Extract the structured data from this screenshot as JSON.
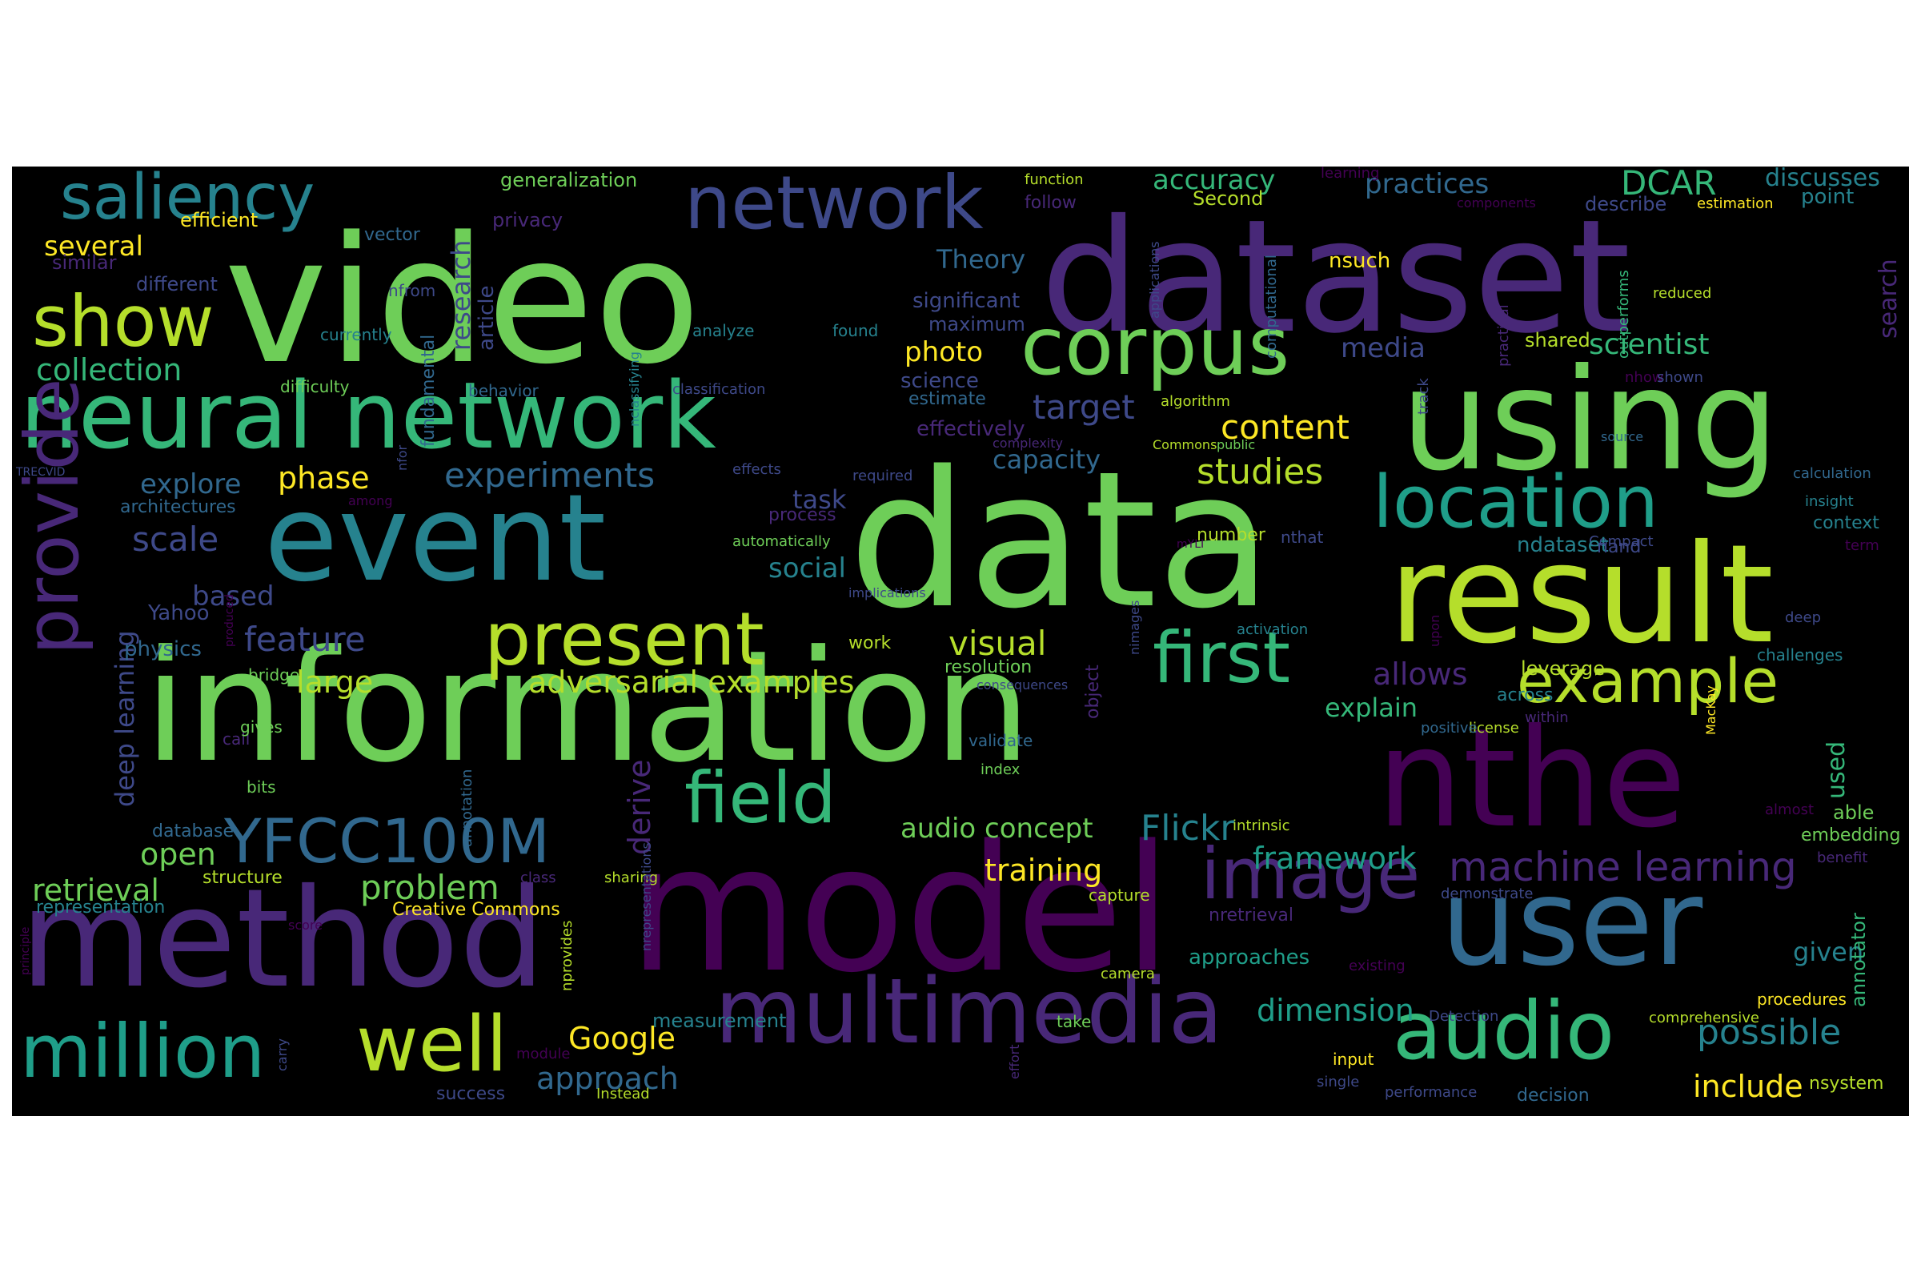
{
  "palette": {
    "background": "#000000",
    "page": "#ffffff",
    "colors": [
      "#440154",
      "#482878",
      "#3e4989",
      "#31688e",
      "#26828e",
      "#1f9e89",
      "#35b779",
      "#6ece58",
      "#b5de2b",
      "#fde725"
    ]
  },
  "words": [
    {
      "text": "video",
      "color": "#6ece58"
    },
    {
      "text": "dataset",
      "color": "#482878"
    },
    {
      "text": "data",
      "color": "#6ece58"
    },
    {
      "text": "information",
      "color": "#6ece58"
    },
    {
      "text": "model",
      "color": "#440154"
    },
    {
      "text": "method",
      "color": "#482878"
    },
    {
      "text": "event",
      "color": "#26828e"
    },
    {
      "text": "using",
      "color": "#6ece58"
    },
    {
      "text": "result",
      "color": "#b5de2b"
    },
    {
      "text": "nthe",
      "color": "#440154"
    },
    {
      "text": "user",
      "color": "#31688e"
    },
    {
      "text": "neural network",
      "color": "#35b779"
    },
    {
      "text": "multimedia",
      "color": "#482878"
    },
    {
      "text": "network",
      "color": "#3e4989"
    },
    {
      "text": "corpus",
      "color": "#6ece58"
    },
    {
      "text": "saliency",
      "color": "#26828e"
    },
    {
      "text": "present",
      "color": "#b5de2b"
    },
    {
      "text": "location",
      "color": "#1f9e89"
    },
    {
      "text": "audio",
      "color": "#35b779"
    },
    {
      "text": "provide",
      "color": "#482878"
    },
    {
      "text": "image",
      "color": "#482878"
    },
    {
      "text": "first",
      "color": "#35b779"
    },
    {
      "text": "million",
      "color": "#1f9e89"
    },
    {
      "text": "well",
      "color": "#b5de2b"
    },
    {
      "text": "show",
      "color": "#b5de2b"
    },
    {
      "text": "example",
      "color": "#b5de2b"
    },
    {
      "text": "field",
      "color": "#35b779"
    },
    {
      "text": "YFCC100M",
      "color": "#31688e"
    },
    {
      "text": "machine learning",
      "color": "#482878"
    },
    {
      "text": "DCAR",
      "color": "#35b779"
    },
    {
      "text": "collection",
      "color": "#35b779"
    },
    {
      "text": "experiments",
      "color": "#31688e"
    },
    {
      "text": "phase",
      "color": "#fde725"
    },
    {
      "text": "studies",
      "color": "#b5de2b"
    },
    {
      "text": "content",
      "color": "#fde725"
    },
    {
      "text": "explore",
      "color": "#31688e"
    },
    {
      "text": "target",
      "color": "#3e4989"
    },
    {
      "text": "scale",
      "color": "#3e4989"
    },
    {
      "text": "feature",
      "color": "#3e4989"
    },
    {
      "text": "visual",
      "color": "#b5de2b"
    },
    {
      "text": "adversarial examples",
      "color": "#b5de2b"
    },
    {
      "text": "large",
      "color": "#b5de2b"
    },
    {
      "text": "problem",
      "color": "#6ece58"
    },
    {
      "text": "retrieval",
      "color": "#6ece58"
    },
    {
      "text": "open",
      "color": "#6ece58"
    },
    {
      "text": "deep learning",
      "color": "#3e4989"
    },
    {
      "text": "derive",
      "color": "#482878"
    },
    {
      "text": "audio concept",
      "color": "#6ece58"
    },
    {
      "text": "Flickr",
      "color": "#26828e"
    },
    {
      "text": "framework",
      "color": "#1f9e89"
    },
    {
      "text": "training",
      "color": "#fde725"
    },
    {
      "text": "Google",
      "color": "#fde725"
    },
    {
      "text": "approach",
      "color": "#31688e"
    },
    {
      "text": "dimension",
      "color": "#1f9e89"
    },
    {
      "text": "possible",
      "color": "#26828e"
    },
    {
      "text": "include",
      "color": "#fde725"
    },
    {
      "text": "several",
      "color": "#fde725"
    },
    {
      "text": "research",
      "color": "#3e4989"
    },
    {
      "text": "accuracy",
      "color": "#35b779"
    },
    {
      "text": "practices",
      "color": "#31688e"
    },
    {
      "text": "discusses",
      "color": "#26828e"
    },
    {
      "text": "scientist",
      "color": "#35b779"
    },
    {
      "text": "media",
      "color": "#3e4989"
    },
    {
      "text": "photo",
      "color": "#fde725"
    },
    {
      "text": "Theory",
      "color": "#31688e"
    },
    {
      "text": "capacity",
      "color": "#31688e"
    },
    {
      "text": "task",
      "color": "#3e4989"
    },
    {
      "text": "social",
      "color": "#26828e"
    },
    {
      "text": "based",
      "color": "#3e4989"
    },
    {
      "text": "allows",
      "color": "#482878"
    },
    {
      "text": "explain",
      "color": "#35b779"
    },
    {
      "text": "given",
      "color": "#26828e"
    },
    {
      "text": "used",
      "color": "#35b779"
    },
    {
      "text": "search",
      "color": "#482878"
    },
    {
      "text": "article",
      "color": "#3e4989"
    },
    {
      "text": "nsuch",
      "color": "#fde725"
    },
    {
      "text": "shared",
      "color": "#b5de2b"
    },
    {
      "text": "point",
      "color": "#26828e"
    },
    {
      "text": "describe",
      "color": "#3e4989"
    },
    {
      "text": "significant",
      "color": "#3e4989"
    },
    {
      "text": "maximum",
      "color": "#3e4989"
    },
    {
      "text": "effectively",
      "color": "#482878"
    },
    {
      "text": "science",
      "color": "#3e4989"
    },
    {
      "text": "estimate",
      "color": "#31688e"
    },
    {
      "text": "approaches",
      "color": "#1f9e89"
    },
    {
      "text": "measurement",
      "color": "#26828e"
    },
    {
      "text": "generalization",
      "color": "#6ece58"
    },
    {
      "text": "efficient",
      "color": "#fde725"
    },
    {
      "text": "similar",
      "color": "#482878"
    },
    {
      "text": "different",
      "color": "#3e4989"
    },
    {
      "text": "privacy",
      "color": "#482878"
    },
    {
      "text": "vector",
      "color": "#31688e"
    },
    {
      "text": "Second",
      "color": "#b5de2b"
    },
    {
      "text": "follow",
      "color": "#482878"
    },
    {
      "text": "function",
      "color": "#b5de2b"
    },
    {
      "text": "learning",
      "color": "#440154"
    },
    {
      "text": "components",
      "color": "#440154"
    },
    {
      "text": "estimation",
      "color": "#fde725"
    },
    {
      "text": "reduced",
      "color": "#b5de2b"
    },
    {
      "text": "nfrom",
      "color": "#3e4989"
    },
    {
      "text": "currently",
      "color": "#26828e"
    },
    {
      "text": "analyze",
      "color": "#26828e"
    },
    {
      "text": "found",
      "color": "#26828e"
    },
    {
      "text": "difficulty",
      "color": "#6ece58"
    },
    {
      "text": "behavior",
      "color": "#31688e"
    },
    {
      "text": "classification",
      "color": "#3e4989"
    },
    {
      "text": "algorithm",
      "color": "#b5de2b"
    },
    {
      "text": "architectures",
      "color": "#31688e"
    },
    {
      "text": "effects",
      "color": "#3e4989"
    },
    {
      "text": "required",
      "color": "#3e4989"
    },
    {
      "text": "process",
      "color": "#482878"
    },
    {
      "text": "automatically",
      "color": "#6ece58"
    },
    {
      "text": "Compact",
      "color": "#3e4989"
    },
    {
      "text": "insight",
      "color": "#26828e"
    },
    {
      "text": "context",
      "color": "#26828e"
    },
    {
      "text": "number",
      "color": "#b5de2b"
    },
    {
      "text": "nthat",
      "color": "#3e4989"
    },
    {
      "text": "ndataset",
      "color": "#26828e"
    },
    {
      "text": "nand",
      "color": "#3e4989"
    },
    {
      "text": "Yahoo",
      "color": "#3e4989"
    },
    {
      "text": "physics",
      "color": "#31688e"
    },
    {
      "text": "bridge",
      "color": "#6ece58"
    },
    {
      "text": "work",
      "color": "#b5de2b"
    },
    {
      "text": "resolution",
      "color": "#6ece58"
    },
    {
      "text": "object",
      "color": "#482878"
    },
    {
      "text": "activation",
      "color": "#26828e"
    },
    {
      "text": "leverage",
      "color": "#b5de2b"
    },
    {
      "text": "across",
      "color": "#26828e"
    },
    {
      "text": "within",
      "color": "#482878"
    },
    {
      "text": "deep",
      "color": "#3e4989"
    },
    {
      "text": "challenges",
      "color": "#26828e"
    },
    {
      "text": "license",
      "color": "#b5de2b"
    },
    {
      "text": "positive",
      "color": "#31688e"
    },
    {
      "text": "able",
      "color": "#6ece58"
    },
    {
      "text": "embedding",
      "color": "#6ece58"
    },
    {
      "text": "benefit",
      "color": "#482878"
    },
    {
      "text": "almost",
      "color": "#440154"
    },
    {
      "text": "MacKay",
      "color": "#fde725"
    },
    {
      "text": "validate",
      "color": "#31688e"
    },
    {
      "text": "index",
      "color": "#6ece58"
    },
    {
      "text": "call",
      "color": "#482878"
    },
    {
      "text": "bits",
      "color": "#6ece58"
    },
    {
      "text": "gives",
      "color": "#6ece58"
    },
    {
      "text": "database",
      "color": "#31688e"
    },
    {
      "text": "structure",
      "color": "#b5de2b"
    },
    {
      "text": "representation",
      "color": "#26828e"
    },
    {
      "text": "Creative Commons",
      "color": "#fde725"
    },
    {
      "text": "sharing",
      "color": "#b5de2b"
    },
    {
      "text": "class",
      "color": "#482878"
    },
    {
      "text": "capture",
      "color": "#b5de2b"
    },
    {
      "text": "intrinsic",
      "color": "#b5de2b"
    },
    {
      "text": "demonstrate",
      "color": "#3e4989"
    },
    {
      "text": "nretrieval",
      "color": "#482878"
    },
    {
      "text": "existing",
      "color": "#440154"
    },
    {
      "text": "camera",
      "color": "#b5de2b"
    },
    {
      "text": "take",
      "color": "#6ece58"
    },
    {
      "text": "Detection",
      "color": "#3e4989"
    },
    {
      "text": "comprehensive",
      "color": "#b5de2b"
    },
    {
      "text": "procedures",
      "color": "#fde725"
    },
    {
      "text": "annotator",
      "color": "#35b779"
    },
    {
      "text": "input",
      "color": "#fde725"
    },
    {
      "text": "single",
      "color": "#3e4989"
    },
    {
      "text": "performance",
      "color": "#3e4989"
    },
    {
      "text": "decision",
      "color": "#31688e"
    },
    {
      "text": "nsystem",
      "color": "#b5de2b"
    },
    {
      "text": "success",
      "color": "#3e4989"
    },
    {
      "text": "Instead",
      "color": "#b5de2b"
    },
    {
      "text": "module",
      "color": "#440154"
    },
    {
      "text": "TRECVID",
      "color": "#3e4989"
    },
    {
      "text": "nclassifying",
      "color": "#26828e"
    },
    {
      "text": "computational",
      "color": "#31688e"
    },
    {
      "text": "applications",
      "color": "#3e4989"
    },
    {
      "text": "practical",
      "color": "#482878"
    },
    {
      "text": "outperforms",
      "color": "#35b779"
    },
    {
      "text": "track",
      "color": "#3e4989"
    },
    {
      "text": "nhow",
      "color": "#440154"
    },
    {
      "text": "shown",
      "color": "#3e4989"
    },
    {
      "text": "source",
      "color": "#31688e"
    },
    {
      "text": "calculation",
      "color": "#31688e"
    },
    {
      "text": "public",
      "color": "#6ece58"
    },
    {
      "text": "Commons",
      "color": "#b5de2b"
    },
    {
      "text": "complexity",
      "color": "#482878"
    },
    {
      "text": "nfor",
      "color": "#3e4989"
    },
    {
      "text": "fundamental",
      "color": "#31688e"
    },
    {
      "text": "among",
      "color": "#440154"
    },
    {
      "text": "mYLI",
      "color": "#440154"
    },
    {
      "text": "term",
      "color": "#440154"
    },
    {
      "text": "upon",
      "color": "#440154"
    },
    {
      "text": "implications",
      "color": "#3e4989"
    },
    {
      "text": "nimages",
      "color": "#3e4989"
    },
    {
      "text": "annotation",
      "color": "#31688e"
    },
    {
      "text": "nprovides",
      "color": "#b5de2b"
    },
    {
      "text": "nrepresentations",
      "color": "#3e4989"
    },
    {
      "text": "principle",
      "color": "#440154"
    },
    {
      "text": "carry",
      "color": "#3e4989"
    },
    {
      "text": "score",
      "color": "#440154"
    },
    {
      "text": "produced",
      "color": "#440154"
    },
    {
      "text": "consequences",
      "color": "#3e4989"
    },
    {
      "text": "effort",
      "color": "#482878"
    }
  ]
}
